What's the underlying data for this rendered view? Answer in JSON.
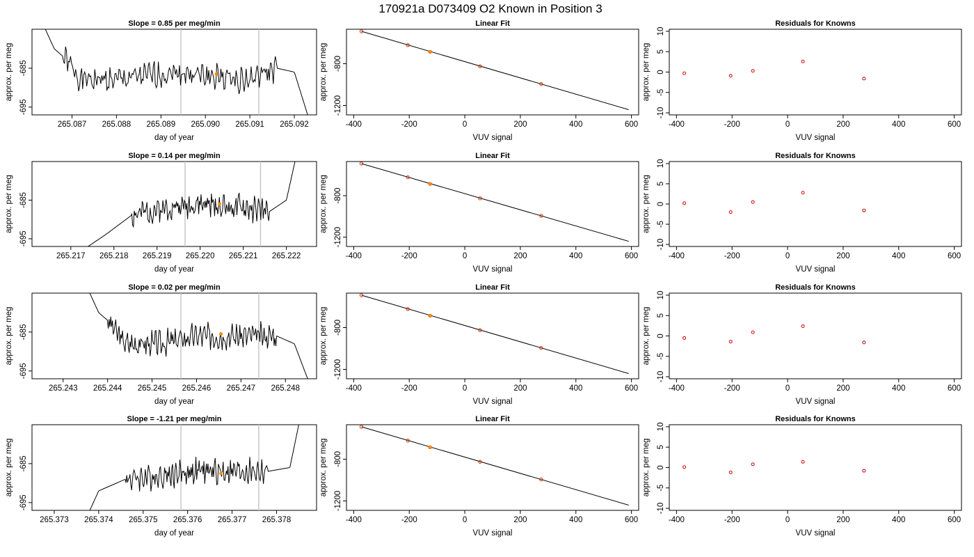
{
  "figure_title": "170921a      D073409   O2 Known in Position  3",
  "colors": {
    "trace": "#000000",
    "vline": "#c8c8c8",
    "marker": "#ff8c00",
    "residual": "#cc0000",
    "fitpoint": "#cc3300"
  },
  "chart_data": [
    {
      "type": "line",
      "row": 0,
      "title": "Slope =  0.85  per meg/min",
      "xlabel": "day of year",
      "ylabel": "approx. per meg",
      "xlim": [
        265.0861,
        265.0925
      ],
      "ylim": [
        -697,
        -675
      ],
      "reversed_y": true,
      "flip_seed": 1,
      "xticks": [
        265.087,
        265.088,
        265.089,
        265.09,
        265.091,
        265.092
      ],
      "xtick_labels": [
        "265.087",
        "265.088",
        "265.089",
        "265.090",
        "265.091",
        "265.092"
      ],
      "yticks": [
        -685,
        -695
      ],
      "ytick_labels": [
        "-685",
        "-695"
      ],
      "vlines": [
        265.08945,
        265.0912
      ],
      "series": [
        {
          "x": [
            265.0864,
            265.0866,
            265.0868,
            265.0872,
            265.088,
            265.0894,
            265.09,
            265.091,
            265.0916,
            265.092,
            265.0923
          ],
          "y": [
            -675,
            -680,
            -682,
            -688,
            -688,
            -686,
            -687,
            -688,
            -685,
            -686,
            -697
          ]
        }
      ],
      "marker": {
        "x": 265.09025,
        "y": -686.5
      }
    },
    {
      "type": "line",
      "row": 1,
      "title": "Slope =  0.14  per meg/min",
      "xlabel": "day of year",
      "ylabel": "approx. per meg",
      "xlim": [
        265.2161,
        265.2227
      ],
      "ylim": [
        -697,
        -675
      ],
      "reversed_y": true,
      "flip_seed": 2,
      "xticks": [
        265.217,
        265.218,
        265.219,
        265.22,
        265.221,
        265.222
      ],
      "xtick_labels": [
        "265.217",
        "265.218",
        "265.219",
        "265.220",
        "265.221",
        "265.222"
      ],
      "yticks": [
        -685,
        -695
      ],
      "ytick_labels": [
        "-685",
        "-695"
      ],
      "vlines": [
        265.21965,
        265.2214
      ],
      "series": [
        {
          "x": [
            265.2174,
            265.2178,
            265.2184,
            265.2192,
            265.22,
            265.221,
            265.2216,
            265.222,
            265.2222
          ],
          "y": [
            -697,
            -694,
            -689,
            -687,
            -686,
            -687,
            -688,
            -685,
            -675
          ]
        }
      ],
      "marker": {
        "x": 265.22045,
        "y": -686
      }
    },
    {
      "type": "line",
      "row": 2,
      "title": "Slope =  0.02  per meg/min",
      "xlabel": "day of year",
      "ylabel": "approx. per meg",
      "xlim": [
        265.2423,
        265.2487
      ],
      "ylim": [
        -697,
        -675
      ],
      "reversed_y": true,
      "flip_seed": 3,
      "xticks": [
        265.243,
        265.244,
        265.245,
        265.246,
        265.247,
        265.248
      ],
      "xtick_labels": [
        "265.243",
        "265.244",
        "265.245",
        "265.246",
        "265.247",
        "265.248"
      ],
      "yticks": [
        -685,
        -695
      ],
      "ytick_labels": [
        "-685",
        "-695"
      ],
      "vlines": [
        265.24565,
        265.2474
      ],
      "series": [
        {
          "x": [
            265.2436,
            265.2438,
            265.244,
            265.2444,
            265.2452,
            265.246,
            265.247,
            265.2478,
            265.2482,
            265.2485
          ],
          "y": [
            -675,
            -680,
            -682,
            -688,
            -688,
            -686,
            -686,
            -686,
            -688,
            -697
          ]
        }
      ],
      "marker": {
        "x": 265.24655,
        "y": -685.5
      }
    },
    {
      "type": "line",
      "row": 3,
      "title": "Slope =  -1.21  per meg/min",
      "xlabel": "day of year",
      "ylabel": "approx. per meg",
      "xlim": [
        265.3725,
        265.3789
      ],
      "ylim": [
        -697,
        -675
      ],
      "reversed_y": true,
      "flip_seed": 4,
      "xticks": [
        265.373,
        265.374,
        265.375,
        265.376,
        265.377,
        265.378
      ],
      "xtick_labels": [
        "265.373",
        "265.374",
        "265.375",
        "265.376",
        "265.377",
        "265.378"
      ],
      "yticks": [
        -685,
        -695
      ],
      "ytick_labels": [
        "-685",
        "-695"
      ],
      "vlines": [
        265.37585,
        265.3776
      ],
      "series": [
        {
          "x": [
            265.3738,
            265.374,
            265.3746,
            265.3754,
            265.3762,
            265.377,
            265.3778,
            265.3783,
            265.3785
          ],
          "y": [
            -697,
            -692,
            -689,
            -688,
            -687,
            -687,
            -687,
            -686,
            -675
          ]
        }
      ],
      "marker": {
        "x": 265.37675,
        "y": -687.5
      }
    },
    {
      "type": "scatter",
      "row": 0,
      "title": "Linear Fit",
      "xlabel": "VUV signal",
      "ylabel": "approx. per meg",
      "xlim": [
        -426,
        626
      ],
      "ylim": [
        -1290,
        -470
      ],
      "reversed_y": true,
      "xticks": [
        -400,
        -200,
        0,
        200,
        400,
        600
      ],
      "xtick_labels": [
        "-400",
        "-200",
        "0",
        "200",
        "400",
        "600"
      ],
      "yticks": [
        -800,
        -1200
      ],
      "ytick_labels": [
        "-800",
        "-1200"
      ],
      "fit_line": {
        "x": [
          -372,
          590
        ],
        "y": [
          -490,
          -1240
        ]
      },
      "points": {
        "x": [
          -372,
          -205,
          -125,
          55,
          275
        ],
        "y": [
          -490,
          -622,
          -686,
          -825,
          -994
        ]
      },
      "highlight": {
        "x": -125,
        "y": -686
      }
    },
    {
      "type": "scatter",
      "row": 1,
      "title": "Linear Fit",
      "xlabel": "VUV signal",
      "ylabel": "approx. per meg",
      "xlim": [
        -426,
        626
      ],
      "ylim": [
        -1290,
        -470
      ],
      "reversed_y": true,
      "xticks": [
        -400,
        -200,
        0,
        200,
        400,
        600
      ],
      "xtick_labels": [
        "-400",
        "-200",
        "0",
        "200",
        "400",
        "600"
      ],
      "yticks": [
        -800,
        -1200
      ],
      "ytick_labels": [
        "-800",
        "-1200"
      ],
      "fit_line": {
        "x": [
          -372,
          590
        ],
        "y": [
          -490,
          -1240
        ]
      },
      "points": {
        "x": [
          -372,
          -205,
          -125,
          55,
          275
        ],
        "y": [
          -490,
          -622,
          -686,
          -825,
          -994
        ]
      },
      "highlight": {
        "x": -125,
        "y": -686
      }
    },
    {
      "type": "scatter",
      "row": 2,
      "title": "Linear Fit",
      "xlabel": "VUV signal",
      "ylabel": "approx. per meg",
      "xlim": [
        -426,
        626
      ],
      "ylim": [
        -1290,
        -470
      ],
      "reversed_y": true,
      "xticks": [
        -400,
        -200,
        0,
        200,
        400,
        600
      ],
      "xtick_labels": [
        "-400",
        "-200",
        "0",
        "200",
        "400",
        "600"
      ],
      "yticks": [
        -800,
        -1200
      ],
      "ytick_labels": [
        "-800",
        "-1200"
      ],
      "fit_line": {
        "x": [
          -372,
          590
        ],
        "y": [
          -490,
          -1240
        ]
      },
      "points": {
        "x": [
          -372,
          -205,
          -125,
          55,
          275
        ],
        "y": [
          -490,
          -622,
          -686,
          -825,
          -994
        ]
      },
      "highlight": {
        "x": -125,
        "y": -686
      }
    },
    {
      "type": "scatter",
      "row": 3,
      "title": "Linear Fit",
      "xlabel": "VUV signal",
      "ylabel": "approx. per meg",
      "xlim": [
        -426,
        626
      ],
      "ylim": [
        -1290,
        -470
      ],
      "reversed_y": true,
      "xticks": [
        -400,
        -200,
        0,
        200,
        400,
        600
      ],
      "xtick_labels": [
        "-400",
        "-200",
        "0",
        "200",
        "400",
        "600"
      ],
      "yticks": [
        -800,
        -1200
      ],
      "ytick_labels": [
        "-800",
        "-1200"
      ],
      "fit_line": {
        "x": [
          -372,
          590
        ],
        "y": [
          -490,
          -1240
        ]
      },
      "points": {
        "x": [
          -372,
          -205,
          -125,
          55,
          275
        ],
        "y": [
          -490,
          -622,
          -686,
          -825,
          -994
        ]
      },
      "highlight": {
        "x": -125,
        "y": -686
      }
    },
    {
      "type": "scatter",
      "row": 0,
      "title": "Residuals for Knowns",
      "xlabel": "VUV signal",
      "ylabel": "approx. per meg",
      "xlim": [
        -426,
        626
      ],
      "ylim": [
        -10.5,
        10.5
      ],
      "xticks": [
        -400,
        -200,
        0,
        200,
        400,
        600
      ],
      "xtick_labels": [
        "-400",
        "-200",
        "0",
        "200",
        "400",
        "600"
      ],
      "yticks": [
        10,
        5,
        0,
        -5,
        -10
      ],
      "ytick_labels": [
        "10",
        "5",
        "0",
        "-5",
        "-10"
      ],
      "points": {
        "x": [
          -372,
          -205,
          -125,
          55,
          275
        ],
        "y": [
          -0.3,
          -0.9,
          0.3,
          2.6,
          -1.6
        ]
      }
    },
    {
      "type": "scatter",
      "row": 1,
      "title": "Residuals for Knowns",
      "xlabel": "VUV signal",
      "ylabel": "approx. per meg",
      "xlim": [
        -426,
        626
      ],
      "ylim": [
        -10.5,
        10.5
      ],
      "xticks": [
        -400,
        -200,
        0,
        200,
        400,
        600
      ],
      "xtick_labels": [
        "-400",
        "-200",
        "0",
        "200",
        "400",
        "600"
      ],
      "yticks": [
        10,
        5,
        0,
        -5,
        -10
      ],
      "ytick_labels": [
        "10",
        "5",
        "0",
        "-5",
        "-10"
      ],
      "points": {
        "x": [
          -372,
          -205,
          -125,
          55,
          275
        ],
        "y": [
          0.2,
          -2.0,
          0.5,
          2.8,
          -1.6
        ]
      }
    },
    {
      "type": "scatter",
      "row": 2,
      "title": "Residuals for Knowns",
      "xlabel": "VUV signal",
      "ylabel": "approx. per meg",
      "xlim": [
        -426,
        626
      ],
      "ylim": [
        -10.5,
        10.5
      ],
      "xticks": [
        -400,
        -200,
        0,
        200,
        400,
        600
      ],
      "xtick_labels": [
        "-400",
        "-200",
        "0",
        "200",
        "400",
        "600"
      ],
      "yticks": [
        10,
        5,
        0,
        -5,
        -10
      ],
      "ytick_labels": [
        "10",
        "5",
        "0",
        "-5",
        "-10"
      ],
      "points": {
        "x": [
          -372,
          -205,
          -125,
          55,
          275
        ],
        "y": [
          -0.5,
          -1.4,
          0.9,
          2.4,
          -1.6
        ]
      }
    },
    {
      "type": "scatter",
      "row": 3,
      "title": "Residuals for Knowns",
      "xlabel": "VUV signal",
      "ylabel": "approx. per meg",
      "xlim": [
        -426,
        626
      ],
      "ylim": [
        -10.5,
        10.5
      ],
      "xticks": [
        -400,
        -200,
        0,
        200,
        400,
        600
      ],
      "xtick_labels": [
        "-400",
        "-200",
        "0",
        "200",
        "400",
        "600"
      ],
      "yticks": [
        10,
        5,
        0,
        -5,
        -10
      ],
      "ytick_labels": [
        "10",
        "5",
        "0",
        "-5",
        "-10"
      ],
      "points": {
        "x": [
          -372,
          -205,
          -125,
          55,
          275
        ],
        "y": [
          0.1,
          -1.2,
          0.8,
          1.4,
          -0.8
        ]
      }
    }
  ]
}
